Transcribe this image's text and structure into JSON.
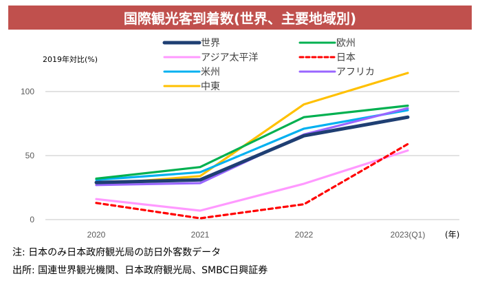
{
  "header": {
    "title": "国際観光客到着数(世界、主要地域別)",
    "background_color": "#C0504D"
  },
  "notes": {
    "note": "注: 日本のみ日本政府観光局の訪日外客数データ",
    "source": "出所: 国連世界観光機関、日本政府観光局、SMBC日興証券"
  },
  "chart_data": {
    "type": "line",
    "title": "国際観光客到着数(世界、主要地域別)",
    "xlabel": "(年)",
    "ylabel": "2019年対比(%)",
    "categories": [
      "2020",
      "2021",
      "2022",
      "2023(Q1)"
    ],
    "ylim": [
      0,
      100
    ],
    "yticks": [
      0,
      50,
      100
    ],
    "grid": true,
    "legend_position": "top-center",
    "series": [
      {
        "name": "世界",
        "color": "#1F3F73",
        "dashed": false,
        "bold": true,
        "values": [
          29,
          31,
          65.5,
          80
        ]
      },
      {
        "name": "欧州",
        "color": "#00B050",
        "dashed": false,
        "bold": false,
        "values": [
          32,
          41,
          80,
          89
        ]
      },
      {
        "name": "アジア太平洋",
        "color": "#FF99FF",
        "dashed": false,
        "bold": false,
        "values": [
          16,
          7,
          28,
          54
        ]
      },
      {
        "name": "日本",
        "color": "#FF0000",
        "dashed": true,
        "bold": false,
        "values": [
          13,
          1,
          12,
          59
        ]
      },
      {
        "name": "米州",
        "color": "#00B0F0",
        "dashed": false,
        "bold": false,
        "values": [
          31,
          37,
          71,
          85.5
        ]
      },
      {
        "name": "アフリカ",
        "color": "#9966FF",
        "dashed": false,
        "bold": false,
        "values": [
          27,
          28.5,
          66.5,
          87
        ]
      },
      {
        "name": "中東",
        "color": "#FFC000",
        "dashed": false,
        "bold": false,
        "values": [
          27.5,
          34,
          90,
          114.5
        ]
      }
    ]
  }
}
